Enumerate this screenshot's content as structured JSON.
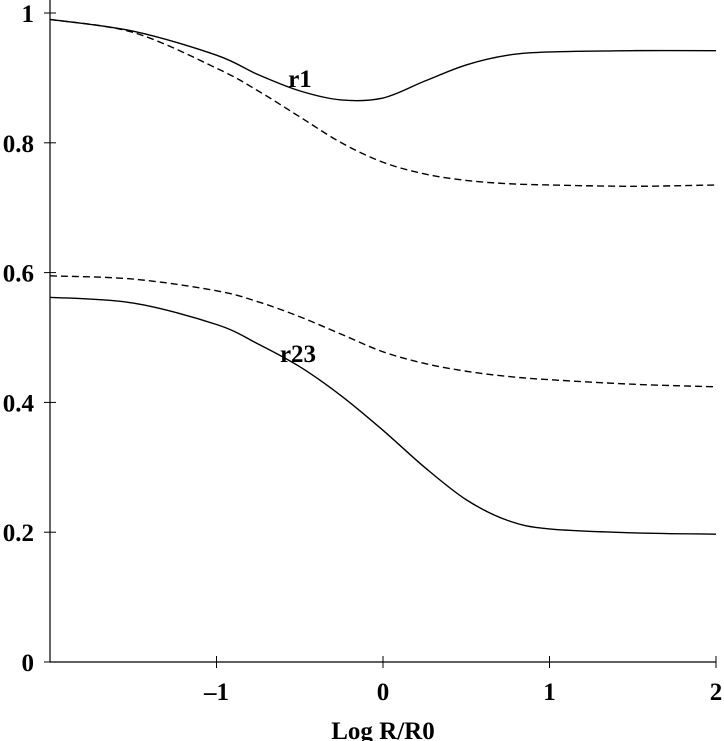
{
  "chart_data": {
    "type": "line",
    "x_label": "Log R/R0",
    "annotations": [
      "r1",
      "r23"
    ],
    "x": [
      -2,
      -1.5,
      -1,
      -0.75,
      -0.5,
      -0.25,
      0,
      0.25,
      0.5,
      0.75,
      1,
      1.5,
      2
    ],
    "series": [
      {
        "color": "#000000",
        "dash": false,
        "values": [
          0.99,
          0.972,
          0.935,
          0.905,
          0.88,
          0.866,
          0.869,
          0.895,
          0.92,
          0.935,
          0.94,
          0.942,
          0.942
        ]
      },
      {
        "color": "#000000",
        "dash": true,
        "values": [
          0.99,
          0.97,
          0.915,
          0.88,
          0.84,
          0.8,
          0.77,
          0.752,
          0.742,
          0.737,
          0.735,
          0.733,
          0.735
        ]
      },
      {
        "color": "#000000",
        "dash": true,
        "values": [
          0.595,
          0.59,
          0.572,
          0.555,
          0.532,
          0.505,
          0.478,
          0.46,
          0.448,
          0.44,
          0.435,
          0.428,
          0.424
        ]
      },
      {
        "color": "#000000",
        "dash": false,
        "values": [
          0.562,
          0.553,
          0.52,
          0.49,
          0.455,
          0.41,
          0.357,
          0.3,
          0.25,
          0.218,
          0.205,
          0.199,
          0.197
        ]
      }
    ],
    "xlim": [
      -2,
      2
    ],
    "xticks": [
      {
        "value": -1,
        "label": "–1"
      },
      0,
      1,
      2
    ],
    "ylim": [
      0,
      1
    ],
    "yticks": [
      0,
      0.2,
      0.4,
      0.6,
      0.8,
      1
    ],
    "grid": false
  }
}
